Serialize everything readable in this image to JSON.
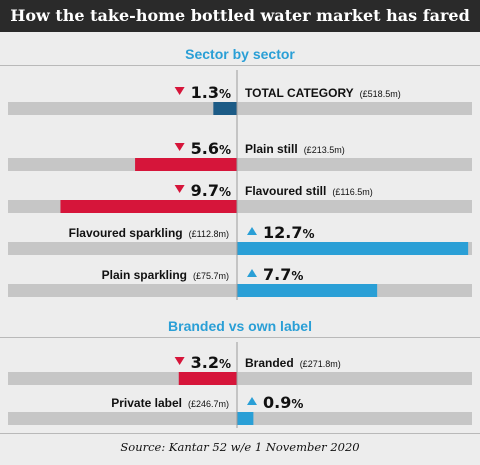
{
  "title": "How the take-home bottled water market has fared",
  "source": "Source: Kantar 52 w/e 1 November 2020",
  "colors": {
    "down": "#d6153a",
    "up": "#2a9fd6",
    "total": "#1c5b86",
    "track": "#c6c6c6"
  },
  "chart_data": [
    {
      "type": "bar",
      "title": "Sector by sector",
      "unit": "%",
      "items": [
        {
          "label": "TOTAL CATEGORY",
          "value_text": "(£518.5m)",
          "value_m": 518.5,
          "change": -1.3,
          "change_text": "1.3",
          "direction": "down"
        },
        {
          "label": "Plain still",
          "value_text": "(£213.5m)",
          "value_m": 213.5,
          "change": -5.6,
          "change_text": "5.6",
          "direction": "down"
        },
        {
          "label": "Flavoured still",
          "value_text": "(£116.5m)",
          "value_m": 116.5,
          "change": -9.7,
          "change_text": "9.7",
          "direction": "down"
        },
        {
          "label": "Flavoured sparkling",
          "value_text": "(£112.8m)",
          "value_m": 112.8,
          "change": 12.7,
          "change_text": "12.7",
          "direction": "up"
        },
        {
          "label": "Plain sparkling",
          "value_text": "(£75.7m)",
          "value_m": 75.7,
          "change": 7.7,
          "change_text": "7.7",
          "direction": "up"
        }
      ]
    },
    {
      "type": "bar",
      "title": "Branded vs own label",
      "unit": "%",
      "items": [
        {
          "label": "Branded",
          "value_text": "(£271.8m)",
          "value_m": 271.8,
          "change": -3.2,
          "change_text": "3.2",
          "direction": "down"
        },
        {
          "label": "Private label",
          "value_text": "(£246.7m)",
          "value_m": 246.7,
          "change": 0.9,
          "change_text": "0.9",
          "direction": "up"
        }
      ]
    }
  ]
}
